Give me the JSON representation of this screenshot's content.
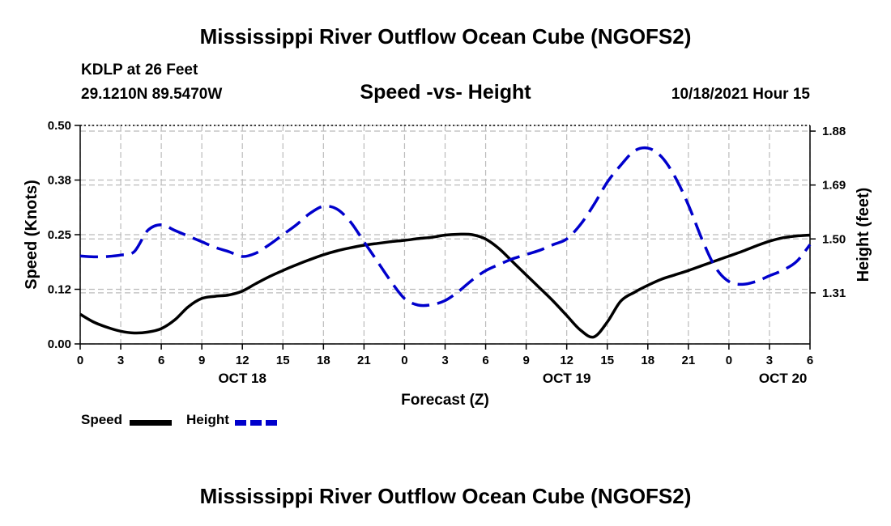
{
  "title": "Mississippi River Outflow Ocean Cube (NGOFS2)",
  "footer_title": "Mississippi River Outflow Ocean Cube (NGOFS2)",
  "station": {
    "name": "KDLP at 26 Feet",
    "coords": "29.1210N  89.5470W",
    "datetime": "10/18/2021 Hour 15"
  },
  "colors": {
    "speed": "#000000",
    "height": "#0000cc",
    "grid": "#bbbbbb"
  },
  "chart_data": {
    "type": "line",
    "title": "Speed -vs- Height",
    "xlabel": "Forecast (Z)",
    "ylabel": "Speed (Knots)",
    "y2label": "Height (feet)",
    "ylim": [
      0.0,
      0.5
    ],
    "y2lim": [
      1.13,
      1.9
    ],
    "y_ticks": [
      "0.00",
      "0.12",
      "0.25",
      "0.38",
      "0.50"
    ],
    "y_tick_values": [
      0.0,
      0.125,
      0.25,
      0.375,
      0.5
    ],
    "y2_ticks": [
      "1.31",
      "1.50",
      "1.69",
      "1.88"
    ],
    "y2_tick_values": [
      1.31,
      1.5,
      1.69,
      1.88
    ],
    "xlim": [
      0,
      54
    ],
    "x_ticks": [
      "0",
      "3",
      "6",
      "9",
      "12",
      "15",
      "18",
      "21",
      "0",
      "3",
      "6",
      "9",
      "12",
      "15",
      "18",
      "21",
      "0",
      "3",
      "6"
    ],
    "x_tick_hours": [
      0,
      3,
      6,
      9,
      12,
      15,
      18,
      21,
      24,
      27,
      30,
      33,
      36,
      39,
      42,
      45,
      48,
      51,
      54
    ],
    "day_labels": [
      {
        "hour": 12,
        "label": "OCT 18"
      },
      {
        "hour": 36,
        "label": "OCT 19"
      },
      {
        "hour": 52,
        "label": "OCT 20"
      }
    ],
    "grid": true,
    "series": [
      {
        "name": "Speed",
        "axis": "left",
        "style": "solid",
        "x": [
          0,
          1,
          2,
          3,
          4,
          5,
          6,
          7,
          8,
          9,
          10,
          11,
          12,
          13,
          14,
          15,
          16,
          17,
          18,
          19,
          20,
          21,
          22,
          23,
          24,
          25,
          26,
          27,
          28,
          29,
          30,
          31,
          32,
          33,
          34,
          35,
          36,
          37,
          38,
          39,
          40,
          41,
          42,
          43,
          44,
          45,
          46,
          47,
          48,
          49,
          50,
          51,
          52,
          53,
          54
        ],
        "values": [
          0.068,
          0.05,
          0.038,
          0.029,
          0.025,
          0.027,
          0.035,
          0.055,
          0.085,
          0.104,
          0.109,
          0.112,
          0.121,
          0.138,
          0.154,
          0.168,
          0.181,
          0.193,
          0.204,
          0.213,
          0.22,
          0.226,
          0.23,
          0.234,
          0.237,
          0.241,
          0.244,
          0.249,
          0.251,
          0.25,
          0.24,
          0.218,
          0.188,
          0.158,
          0.128,
          0.098,
          0.065,
          0.032,
          0.016,
          0.05,
          0.098,
          0.118,
          0.134,
          0.148,
          0.158,
          0.168,
          0.179,
          0.19,
          0.201,
          0.212,
          0.224,
          0.235,
          0.243,
          0.247,
          0.249
        ]
      },
      {
        "name": "Height",
        "axis": "right",
        "style": "dashed",
        "x": [
          0,
          1,
          2,
          3,
          4,
          5,
          6,
          7,
          8,
          9,
          10,
          11,
          12,
          13,
          14,
          15,
          16,
          17,
          18,
          19,
          20,
          21,
          22,
          23,
          24,
          25,
          26,
          27,
          28,
          29,
          30,
          31,
          32,
          33,
          34,
          35,
          36,
          37,
          38,
          39,
          40,
          41,
          42,
          43,
          44,
          45,
          46,
          47,
          48,
          49,
          50,
          51,
          52,
          53,
          54
        ],
        "values": [
          1.44,
          1.437,
          1.438,
          1.443,
          1.455,
          1.53,
          1.55,
          1.53,
          1.51,
          1.49,
          1.47,
          1.455,
          1.438,
          1.45,
          1.48,
          1.515,
          1.55,
          1.59,
          1.615,
          1.605,
          1.56,
          1.49,
          1.42,
          1.35,
          1.29,
          1.267,
          1.268,
          1.283,
          1.315,
          1.355,
          1.388,
          1.41,
          1.43,
          1.445,
          1.46,
          1.48,
          1.5,
          1.55,
          1.62,
          1.7,
          1.76,
          1.81,
          1.82,
          1.79,
          1.72,
          1.62,
          1.5,
          1.4,
          1.35,
          1.34,
          1.35,
          1.37,
          1.39,
          1.42,
          1.48
        ]
      }
    ],
    "legend": [
      {
        "label": "Speed",
        "style": "solid"
      },
      {
        "label": "Height",
        "style": "dashed"
      }
    ]
  }
}
